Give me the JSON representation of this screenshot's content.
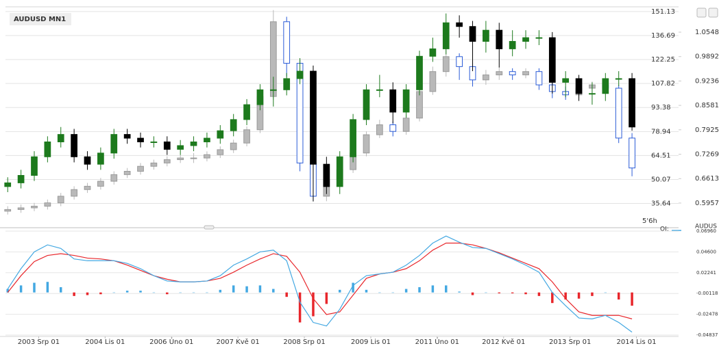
{
  "chart_data": [
    {
      "type": "candlestick",
      "title": "AUDUSD MN1",
      "annotation": "5'6h",
      "legend": [
        "OI:",
        "AUDUS"
      ],
      "x": [
        0,
        3,
        6,
        9,
        12,
        15,
        18,
        21,
        24,
        27,
        30,
        33,
        36,
        39,
        42,
        45,
        48,
        51,
        54,
        57,
        60,
        63,
        66,
        69,
        72,
        75,
        78,
        81,
        84,
        87,
        90,
        93,
        96,
        99,
        102,
        105,
        108,
        111,
        114,
        117,
        120,
        123,
        126,
        129,
        132,
        135,
        138,
        141
      ],
      "xlim": [
        -0.5,
        143
      ],
      "ylim": [
        22.29,
        153.96
      ],
      "yticks": [
        151.13,
        136.69,
        122.25,
        107.82,
        93.38,
        78.94,
        64.51,
        50.07,
        35.64
      ],
      "y2lim": [
        0.535,
        1.1228
      ],
      "y2ticks": [
        1.0548,
        0.9892,
        0.9236,
        0.8581,
        0.7925,
        0.7269,
        0.6613,
        0.5957
      ],
      "grid": true,
      "series": [
        {
          "axis": "y",
          "up_color": "#b9b9b9",
          "down_color": "#2a5bd7",
          "open": [
            31,
            32,
            33,
            34,
            36,
            40,
            44,
            46,
            49,
            53,
            55,
            58,
            60,
            62,
            63,
            63,
            65,
            68,
            72,
            80,
            100,
            145,
            120,
            60,
            40,
            50,
            56,
            66,
            77,
            83,
            79,
            87,
            103,
            115,
            124,
            118,
            110,
            113,
            115,
            113,
            115,
            107,
            103,
            101,
            105,
            107,
            105,
            75
          ],
          "high": [
            34,
            35,
            36,
            38,
            42,
            46,
            48,
            51,
            55,
            57,
            60,
            62,
            64,
            65,
            66,
            67,
            70,
            74,
            82,
            104,
            152,
            148,
            122,
            62,
            52,
            58,
            68,
            79,
            86,
            85,
            89,
            105,
            118,
            128,
            126,
            120,
            116,
            118,
            117,
            117,
            117,
            109,
            106,
            107,
            109,
            110,
            107,
            78
          ],
          "low": [
            29,
            30,
            31,
            32,
            34,
            38,
            42,
            44,
            47,
            51,
            53,
            56,
            58,
            60,
            60,
            61,
            63,
            66,
            70,
            78,
            98,
            112,
            55,
            37,
            37,
            47,
            54,
            64,
            75,
            76,
            77,
            85,
            101,
            112,
            110,
            106,
            107,
            110,
            110,
            111,
            104,
            99,
            98,
            99,
            103,
            102,
            72,
            52
          ],
          "close": [
            32,
            33,
            34,
            36,
            40,
            44,
            46,
            49,
            53,
            55,
            58,
            60,
            62,
            63,
            63,
            65,
            68,
            72,
            80,
            100,
            145,
            120,
            60,
            40,
            50,
            56,
            66,
            77,
            83,
            79,
            87,
            103,
            115,
            124,
            118,
            110,
            113,
            115,
            113,
            115,
            107,
            103,
            101,
            105,
            107,
            105,
            75,
            57
          ]
        },
        {
          "axis": "y2",
          "up_color": "#1d7a1d",
          "down_color": "#000000",
          "open": [
            0.64,
            0.65,
            0.67,
            0.72,
            0.76,
            0.78,
            0.72,
            0.7,
            0.73,
            0.78,
            0.77,
            0.76,
            0.76,
            0.74,
            0.75,
            0.76,
            0.77,
            0.79,
            0.82,
            0.86,
            0.9,
            0.9,
            0.93,
            0.95,
            0.7,
            0.64,
            0.72,
            0.82,
            0.9,
            0.9,
            0.84,
            0.9,
            0.99,
            1.01,
            1.08,
            1.07,
            1.03,
            1.06,
            1.01,
            1.03,
            1.04,
            1.04,
            0.92,
            0.93,
            0.89,
            0.89,
            0.93,
            0.93
          ],
          "high": [
            0.665,
            0.685,
            0.735,
            0.775,
            0.8,
            0.795,
            0.735,
            0.745,
            0.795,
            0.795,
            0.785,
            0.775,
            0.775,
            0.765,
            0.775,
            0.785,
            0.805,
            0.835,
            0.875,
            0.915,
            0.935,
            0.945,
            0.985,
            0.965,
            0.72,
            0.735,
            0.835,
            0.915,
            0.94,
            0.92,
            0.915,
            1.005,
            1.04,
            1.105,
            1.1,
            1.085,
            1.085,
            1.08,
            1.06,
            1.06,
            1.06,
            1.055,
            0.95,
            0.94,
            0.92,
            0.945,
            0.95,
            0.945
          ],
          "low": [
            0.625,
            0.635,
            0.655,
            0.705,
            0.745,
            0.705,
            0.685,
            0.685,
            0.715,
            0.755,
            0.745,
            0.745,
            0.725,
            0.725,
            0.735,
            0.745,
            0.755,
            0.775,
            0.805,
            0.845,
            0.855,
            0.885,
            0.915,
            0.6,
            0.62,
            0.62,
            0.705,
            0.805,
            0.88,
            0.81,
            0.825,
            0.885,
            0.975,
            0.995,
            1.04,
            0.95,
            1.0,
            0.96,
            0.99,
            1.01,
            1.02,
            0.89,
            0.88,
            0.87,
            0.86,
            0.87,
            0.91,
            0.79
          ],
          "close": [
            0.65,
            0.67,
            0.72,
            0.76,
            0.78,
            0.72,
            0.7,
            0.73,
            0.78,
            0.77,
            0.76,
            0.76,
            0.74,
            0.75,
            0.76,
            0.77,
            0.79,
            0.82,
            0.86,
            0.9,
            0.9,
            0.93,
            0.95,
            0.7,
            0.64,
            0.72,
            0.82,
            0.9,
            0.9,
            0.84,
            0.9,
            0.99,
            1.01,
            1.08,
            1.07,
            1.03,
            1.06,
            1.01,
            1.03,
            1.04,
            1.04,
            0.92,
            0.93,
            0.89,
            0.89,
            0.93,
            0.93,
            0.8
          ]
        }
      ]
    },
    {
      "type": "macd",
      "x": [
        0,
        3,
        6,
        9,
        12,
        15,
        18,
        21,
        24,
        27,
        30,
        33,
        36,
        39,
        42,
        45,
        48,
        51,
        54,
        57,
        60,
        63,
        66,
        69,
        72,
        75,
        78,
        81,
        84,
        87,
        90,
        93,
        96,
        99,
        102,
        105,
        108,
        111,
        114,
        117,
        120,
        123,
        126,
        129,
        132,
        135,
        138,
        141
      ],
      "xlim": [
        -0.5,
        143
      ],
      "xticks": [
        {
          "value": 7,
          "label": "2003 Srp 01"
        },
        {
          "value": 22,
          "label": "2004 Lis 01"
        },
        {
          "value": 37,
          "label": "2006 Úno 01"
        },
        {
          "value": 52,
          "label": "2007 Kvě 01"
        },
        {
          "value": 67,
          "label": "2008 Srp 01"
        },
        {
          "value": 82,
          "label": "2009 Lis 01"
        },
        {
          "value": 97,
          "label": "2011 Úno 01"
        },
        {
          "value": 112,
          "label": "2012 Kvě 01"
        },
        {
          "value": 127,
          "label": "2013 Srp 01"
        },
        {
          "value": 142,
          "label": "2014 Lis 01"
        }
      ],
      "ylim": [
        -0.0522,
        0.0719
      ],
      "yticks": [
        {
          "value": 0.0696,
          "label": "0.06960"
        },
        {
          "value": 0.046,
          "label": "0.04600"
        },
        0.02241,
        -0.00118,
        -0.02478,
        -0.04837
      ],
      "grid": true,
      "macd": {
        "color": "#43a8e2",
        "values": [
          0.004,
          0.027,
          0.046,
          0.054,
          0.05,
          0.038,
          0.036,
          0.036,
          0.036,
          0.033,
          0.027,
          0.019,
          0.013,
          0.012,
          0.012,
          0.013,
          0.019,
          0.031,
          0.038,
          0.046,
          0.048,
          0.036,
          -0.011,
          -0.034,
          -0.038,
          -0.019,
          0.008,
          0.019,
          0.021,
          0.023,
          0.031,
          0.042,
          0.056,
          0.064,
          0.057,
          0.051,
          0.05,
          0.044,
          0.038,
          0.031,
          0.023,
          0.0,
          -0.015,
          -0.029,
          -0.03,
          -0.026,
          -0.034,
          -0.045
        ]
      },
      "signal": {
        "color": "#e8262b",
        "values": [
          0.0,
          0.019,
          0.035,
          0.042,
          0.044,
          0.042,
          0.039,
          0.038,
          0.036,
          0.031,
          0.025,
          0.019,
          0.015,
          0.012,
          0.012,
          0.013,
          0.016,
          0.023,
          0.031,
          0.038,
          0.044,
          0.041,
          0.023,
          -0.007,
          -0.025,
          -0.022,
          -0.003,
          0.016,
          0.021,
          0.023,
          0.027,
          0.036,
          0.048,
          0.056,
          0.056,
          0.054,
          0.05,
          0.045,
          0.039,
          0.033,
          0.027,
          0.012,
          -0.007,
          -0.022,
          -0.026,
          -0.026,
          -0.026,
          -0.03
        ]
      },
      "histogram": {
        "up_color": "#43a8e2",
        "down_color": "#e8262b",
        "values": [
          0.004,
          0.008,
          0.011,
          0.012,
          0.006,
          -0.004,
          -0.003,
          -0.002,
          0.0,
          0.002,
          0.002,
          0.0,
          -0.002,
          0.0,
          0.0,
          0.0,
          0.003,
          0.008,
          0.007,
          0.008,
          0.004,
          -0.005,
          -0.034,
          -0.027,
          -0.013,
          0.003,
          0.011,
          0.003,
          0.0,
          0.0,
          0.004,
          0.006,
          0.008,
          0.008,
          0.001,
          -0.003,
          0.0,
          -0.001,
          -0.001,
          -0.002,
          -0.004,
          -0.012,
          -0.008,
          -0.007,
          -0.004,
          0.0,
          -0.008,
          -0.015
        ]
      }
    }
  ]
}
